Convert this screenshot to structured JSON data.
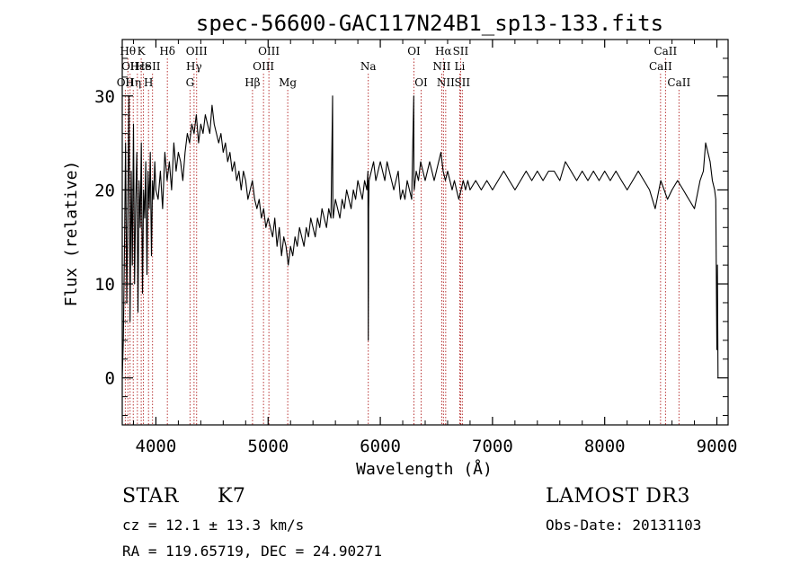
{
  "chart_data": {
    "type": "line",
    "title": "spec-56600-GAC117N24B1_sp13-133.fits",
    "xlabel": "Wavelength (Å)",
    "ylabel": "Flux (relative)",
    "xlim": [
      3700,
      9100
    ],
    "ylim": [
      -5,
      36
    ],
    "x_ticks": [
      4000,
      5000,
      6000,
      7000,
      8000,
      9000
    ],
    "y_ticks": [
      0,
      10,
      20,
      30
    ],
    "line_color": "#000000",
    "marker_color": "#b22222",
    "series": [
      {
        "name": "flux",
        "x": [
          3700,
          3710,
          3720,
          3730,
          3740,
          3750,
          3760,
          3770,
          3780,
          3790,
          3800,
          3810,
          3820,
          3830,
          3840,
          3850,
          3860,
          3870,
          3880,
          3890,
          3900,
          3910,
          3920,
          3930,
          3940,
          3950,
          3960,
          3970,
          3980,
          3990,
          4000,
          4020,
          4040,
          4060,
          4080,
          4100,
          4120,
          4140,
          4160,
          4180,
          4200,
          4220,
          4240,
          4260,
          4280,
          4300,
          4320,
          4340,
          4360,
          4380,
          4400,
          4420,
          4440,
          4460,
          4480,
          4500,
          4520,
          4540,
          4560,
          4580,
          4600,
          4620,
          4640,
          4660,
          4680,
          4700,
          4720,
          4740,
          4760,
          4780,
          4800,
          4820,
          4840,
          4860,
          4880,
          4900,
          4920,
          4940,
          4960,
          4980,
          5000,
          5020,
          5040,
          5060,
          5080,
          5100,
          5120,
          5140,
          5160,
          5180,
          5200,
          5220,
          5240,
          5260,
          5280,
          5300,
          5320,
          5340,
          5360,
          5380,
          5400,
          5420,
          5440,
          5460,
          5480,
          5500,
          5520,
          5540,
          5560,
          5575,
          5577,
          5580,
          5600,
          5620,
          5640,
          5660,
          5680,
          5700,
          5720,
          5740,
          5760,
          5780,
          5800,
          5820,
          5840,
          5860,
          5880,
          5890,
          5893,
          5896,
          5900,
          5920,
          5940,
          5960,
          5980,
          6000,
          6020,
          6040,
          6060,
          6080,
          6100,
          6120,
          6140,
          6160,
          6180,
          6200,
          6220,
          6240,
          6260,
          6280,
          6298,
          6300,
          6302,
          6320,
          6340,
          6360,
          6380,
          6400,
          6420,
          6440,
          6460,
          6480,
          6500,
          6520,
          6540,
          6560,
          6580,
          6600,
          6620,
          6640,
          6660,
          6680,
          6700,
          6720,
          6740,
          6760,
          6780,
          6800,
          6850,
          6900,
          6950,
          7000,
          7050,
          7100,
          7150,
          7200,
          7250,
          7300,
          7350,
          7400,
          7450,
          7500,
          7550,
          7600,
          7650,
          7700,
          7750,
          7800,
          7850,
          7900,
          7950,
          8000,
          8050,
          8100,
          8150,
          8200,
          8250,
          8300,
          8350,
          8400,
          8450,
          8500,
          8530,
          8560,
          8600,
          8650,
          8700,
          8750,
          8800,
          8850,
          8880,
          8900,
          8920,
          8940,
          8960,
          8980,
          8990,
          9000,
          9005,
          9010
        ],
        "y": [
          0,
          4,
          14,
          25,
          8,
          18,
          30,
          6,
          22,
          12,
          27,
          10,
          19,
          24,
          7,
          21,
          16,
          25,
          9,
          20,
          17,
          23,
          11,
          22,
          18,
          24,
          13,
          21,
          19,
          23,
          20,
          19,
          22,
          18,
          24,
          21,
          23,
          20,
          25,
          22,
          24,
          23,
          21,
          24,
          26,
          25,
          27,
          26,
          28,
          25,
          27,
          26,
          28,
          27,
          26,
          29,
          27,
          26,
          25,
          26,
          24,
          25,
          23,
          24,
          22,
          23,
          21,
          22,
          20,
          22,
          21,
          19,
          20,
          21,
          19,
          18,
          19,
          17,
          18,
          16,
          17,
          16,
          15,
          17,
          14,
          16,
          13,
          15,
          14,
          12,
          14,
          13,
          15,
          14,
          16,
          15,
          14,
          16,
          15,
          17,
          16,
          15,
          17,
          16,
          18,
          17,
          16,
          18,
          17,
          30,
          18,
          17,
          19,
          18,
          17,
          19,
          18,
          20,
          19,
          18,
          20,
          19,
          21,
          20,
          19,
          21,
          20,
          22,
          4,
          18,
          21,
          22,
          23,
          21,
          22,
          23,
          22,
          21,
          23,
          22,
          21,
          20,
          21,
          22,
          19,
          20,
          19,
          21,
          20,
          19,
          30,
          21,
          20,
          22,
          21,
          23,
          22,
          21,
          22,
          23,
          22,
          21,
          22,
          23,
          24,
          22,
          21,
          22,
          21,
          20,
          21,
          20,
          19,
          20,
          21,
          20,
          21,
          20,
          21,
          20,
          21,
          20,
          21,
          22,
          21,
          20,
          21,
          22,
          21,
          22,
          21,
          22,
          22,
          21,
          23,
          22,
          21,
          22,
          21,
          22,
          21,
          22,
          21,
          22,
          21,
          20,
          21,
          22,
          21,
          20,
          18,
          21,
          20,
          19,
          20,
          21,
          20,
          19,
          18,
          21,
          22,
          25,
          24,
          23,
          21,
          20,
          19,
          3,
          12,
          0
        ]
      }
    ],
    "line_markers": [
      {
        "wavelength": 3727,
        "label": "OII",
        "row": 2
      },
      {
        "wavelength": 3750,
        "label": "Hθ",
        "row": 0
      },
      {
        "wavelength": 3770,
        "label": "OII",
        "row": 1
      },
      {
        "wavelength": 3798,
        "label": "Hη",
        "row": 2
      },
      {
        "wavelength": 3835,
        "label": "Hε",
        "row": 1
      },
      {
        "wavelength": 3869,
        "label": "K",
        "row": 0
      },
      {
        "wavelength": 3889,
        "label": "He",
        "row": 1
      },
      {
        "wavelength": 3934,
        "label": "H",
        "row": 2
      },
      {
        "wavelength": 3970,
        "label": "SII",
        "row": 1
      },
      {
        "wavelength": 4102,
        "label": "Hδ",
        "row": 0
      },
      {
        "wavelength": 4304,
        "label": "G",
        "row": 2
      },
      {
        "wavelength": 4340,
        "label": "Hγ",
        "row": 1
      },
      {
        "wavelength": 4363,
        "label": "OIII",
        "row": 0
      },
      {
        "wavelength": 4861,
        "label": "Hβ",
        "row": 2
      },
      {
        "wavelength": 4959,
        "label": "OIII",
        "row": 1
      },
      {
        "wavelength": 5007,
        "label": "OIII",
        "row": 0
      },
      {
        "wavelength": 5175,
        "label": "Mg",
        "row": 2
      },
      {
        "wavelength": 5893,
        "label": "Na",
        "row": 1
      },
      {
        "wavelength": 6300,
        "label": "OI",
        "row": 0
      },
      {
        "wavelength": 6364,
        "label": "OI",
        "row": 2
      },
      {
        "wavelength": 6548,
        "label": "NII",
        "row": 1
      },
      {
        "wavelength": 6563,
        "label": "Hα",
        "row": 0
      },
      {
        "wavelength": 6583,
        "label": "NII",
        "row": 2
      },
      {
        "wavelength": 6708,
        "label": "Li",
        "row": 1
      },
      {
        "wavelength": 6716,
        "label": "SII",
        "row": 0
      },
      {
        "wavelength": 6731,
        "label": "SII",
        "row": 2
      },
      {
        "wavelength": 8498,
        "label": "CaII",
        "row": 1
      },
      {
        "wavelength": 8542,
        "label": "CaII",
        "row": 0
      },
      {
        "wavelength": 8662,
        "label": "CaII",
        "row": 2
      }
    ]
  },
  "info": {
    "class_label": "STAR",
    "subclass": "K7",
    "redshift": "cz = 12.1 ± 13.3 km/s",
    "coords": "RA = 119.65719, DEC =  24.90271",
    "survey": "LAMOST DR3",
    "obs_date": "Obs-Date: 20131103"
  }
}
